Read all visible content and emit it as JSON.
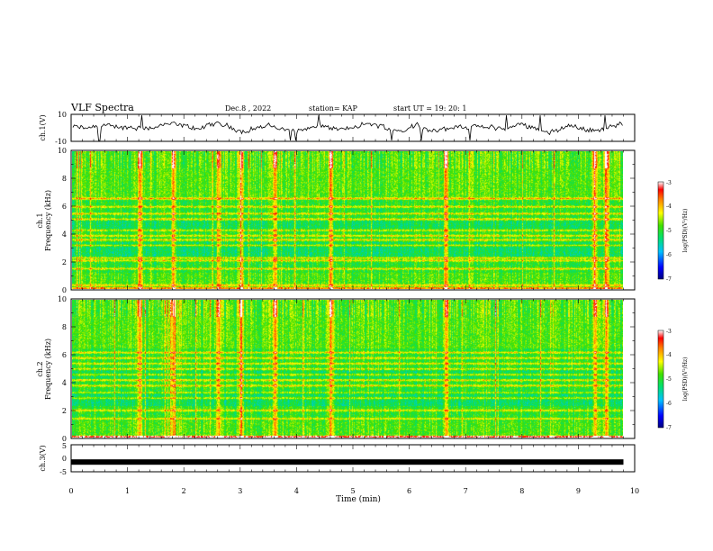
{
  "header": {
    "title": "VLF Spectra",
    "date": "Dec.8 , 2022",
    "station": "station= KAP",
    "start": "start UT = 19: 20: 1"
  },
  "chart_data": [
    {
      "type": "line",
      "panel": "ch1-waveform",
      "ylabel": "ch.1(V)",
      "ylim": [
        -10,
        10
      ],
      "yticks": [
        "10",
        "-10"
      ],
      "xlim": [
        0,
        10
      ],
      "color": "#000000"
    },
    {
      "type": "heatmap",
      "panel": "ch1-spectrogram",
      "ylabel_top": "ch.1",
      "ylabel": "Frequency (kHz)",
      "ylim": [
        0,
        10
      ],
      "yticks": [
        "0",
        "2",
        "4",
        "6",
        "8",
        "10"
      ],
      "xlim": [
        0,
        9.8
      ],
      "colorbar": {
        "label": "log(PSD)(V²/Hz)",
        "ticks": [
          "-3",
          "-4",
          "-5",
          "-6",
          "-7"
        ],
        "range": [
          -7,
          -3
        ]
      },
      "bands_khz": [
        0.3,
        1.5,
        2.1,
        2.3,
        3.2,
        3.6,
        3.9,
        4.3,
        5.1,
        5.5,
        6.0,
        6.6
      ],
      "bursts_min": [
        1.2,
        1.8,
        2.6,
        3.0,
        3.6,
        4.6,
        6.65,
        9.3,
        9.5
      ]
    },
    {
      "type": "heatmap",
      "panel": "ch2-spectrogram",
      "ylabel_top": "ch.2",
      "ylabel": "Frequency (kHz)",
      "ylim": [
        0,
        10
      ],
      "yticks": [
        "0",
        "2",
        "4",
        "6",
        "8",
        "10"
      ],
      "xlim": [
        0,
        9.8
      ],
      "colorbar": {
        "label": "log(PSD)(V²/Hz)",
        "ticks": [
          "-3",
          "-4",
          "-5",
          "-6",
          "-7"
        ],
        "range": [
          -7,
          -3
        ]
      },
      "bands_khz": [
        0.1,
        1.4,
        2.0,
        2.9,
        3.3,
        3.8,
        4.2,
        4.6,
        5.0,
        5.4,
        5.8,
        6.2
      ],
      "bursts_min": [
        1.2,
        1.8,
        2.6,
        3.0,
        3.6,
        4.6,
        6.65,
        9.3,
        9.5
      ]
    },
    {
      "type": "line",
      "panel": "ch3-waveform",
      "ylabel": "ch.3(V)",
      "ylim": [
        -5,
        5
      ],
      "yticks": [
        "5",
        "0",
        "-5"
      ],
      "xlim": [
        0,
        10
      ],
      "xlabel": "Time (min)",
      "xticks": [
        "0",
        "1",
        "2",
        "3",
        "4",
        "5",
        "6",
        "7",
        "8",
        "9",
        "10"
      ],
      "level": -1.5,
      "color": "#000000"
    }
  ]
}
